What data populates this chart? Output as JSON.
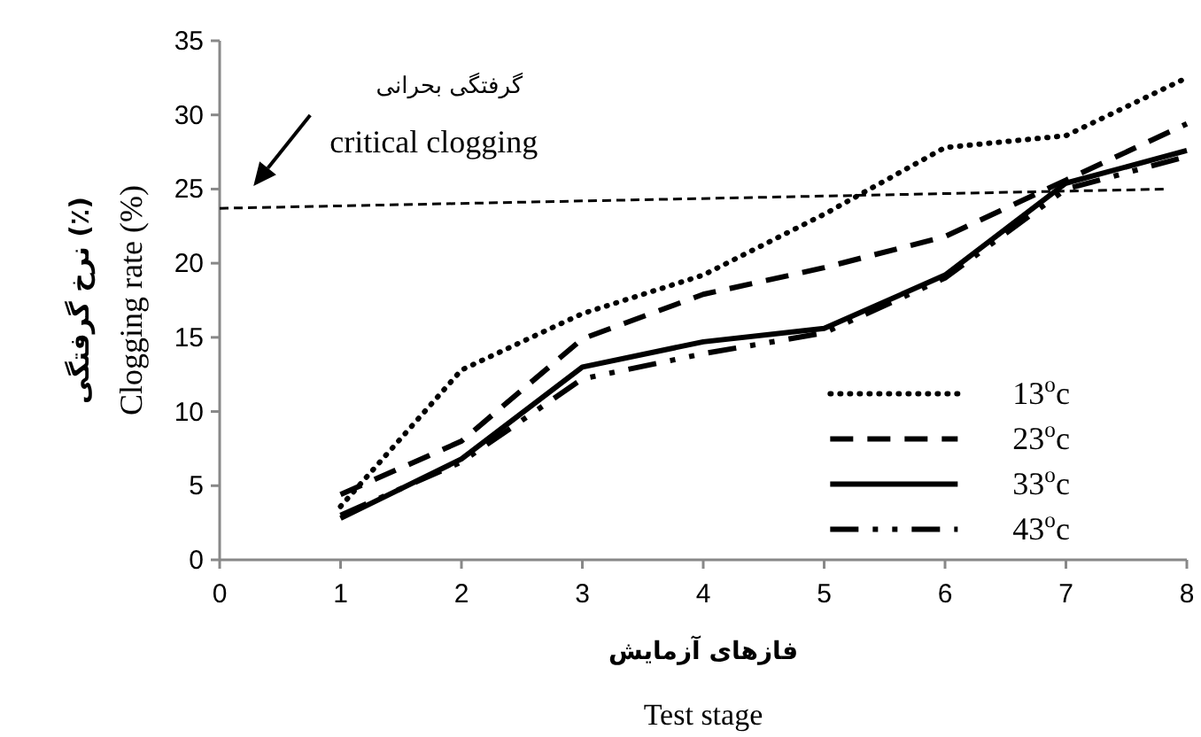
{
  "chart_data": {
    "type": "line",
    "xlabel": "فازهای آزمایش\nTest stage",
    "ylabel": "نرخ گرفتگی (٪)\nClogging rate (%)",
    "x": [
      1,
      2,
      3,
      4,
      5,
      6,
      7,
      8
    ],
    "xlim": [
      0,
      8
    ],
    "xticks": [
      0,
      1,
      2,
      3,
      4,
      5,
      6,
      7,
      8
    ],
    "ylim": [
      0,
      35
    ],
    "yticks": [
      0,
      5,
      10,
      15,
      20,
      25,
      30,
      35
    ],
    "grid": false,
    "legend": "bottom right",
    "series": [
      {
        "name": "13$^{o}$c",
        "color": "#000000",
        "line_style": "dotted",
        "values": [
          3.6,
          12.8,
          16.6,
          19.2,
          23.3,
          27.8,
          28.6,
          32.5
        ]
      },
      {
        "name": "23$^{o}$c",
        "color": "#000000",
        "line_style": "dashed",
        "values": [
          4.4,
          8.0,
          14.9,
          17.9,
          19.7,
          21.8,
          25.6,
          29.4
        ]
      },
      {
        "name": "33$^{o}$c",
        "color": "#000000",
        "line_style": "solid",
        "values": [
          2.8,
          6.8,
          13.0,
          14.7,
          15.6,
          19.2,
          25.4,
          27.6
        ]
      },
      {
        "name": "43$^{o}$c",
        "color": "#000000",
        "line_style": "dashdot",
        "values": [
          3.0,
          6.6,
          12.2,
          13.9,
          15.3,
          19.0,
          25.0,
          27.2
        ]
      },
      {
        "type": "line",
        "color": "#000000",
        "line_style": "dashed",
        "x": [
          0,
          7.85
        ],
        "values": [
          23.7,
          25.0
        ]
      }
    ],
    "annotations": [
      "گرفتگی بحرانی",
      "critical clogging"
    ]
  }
}
